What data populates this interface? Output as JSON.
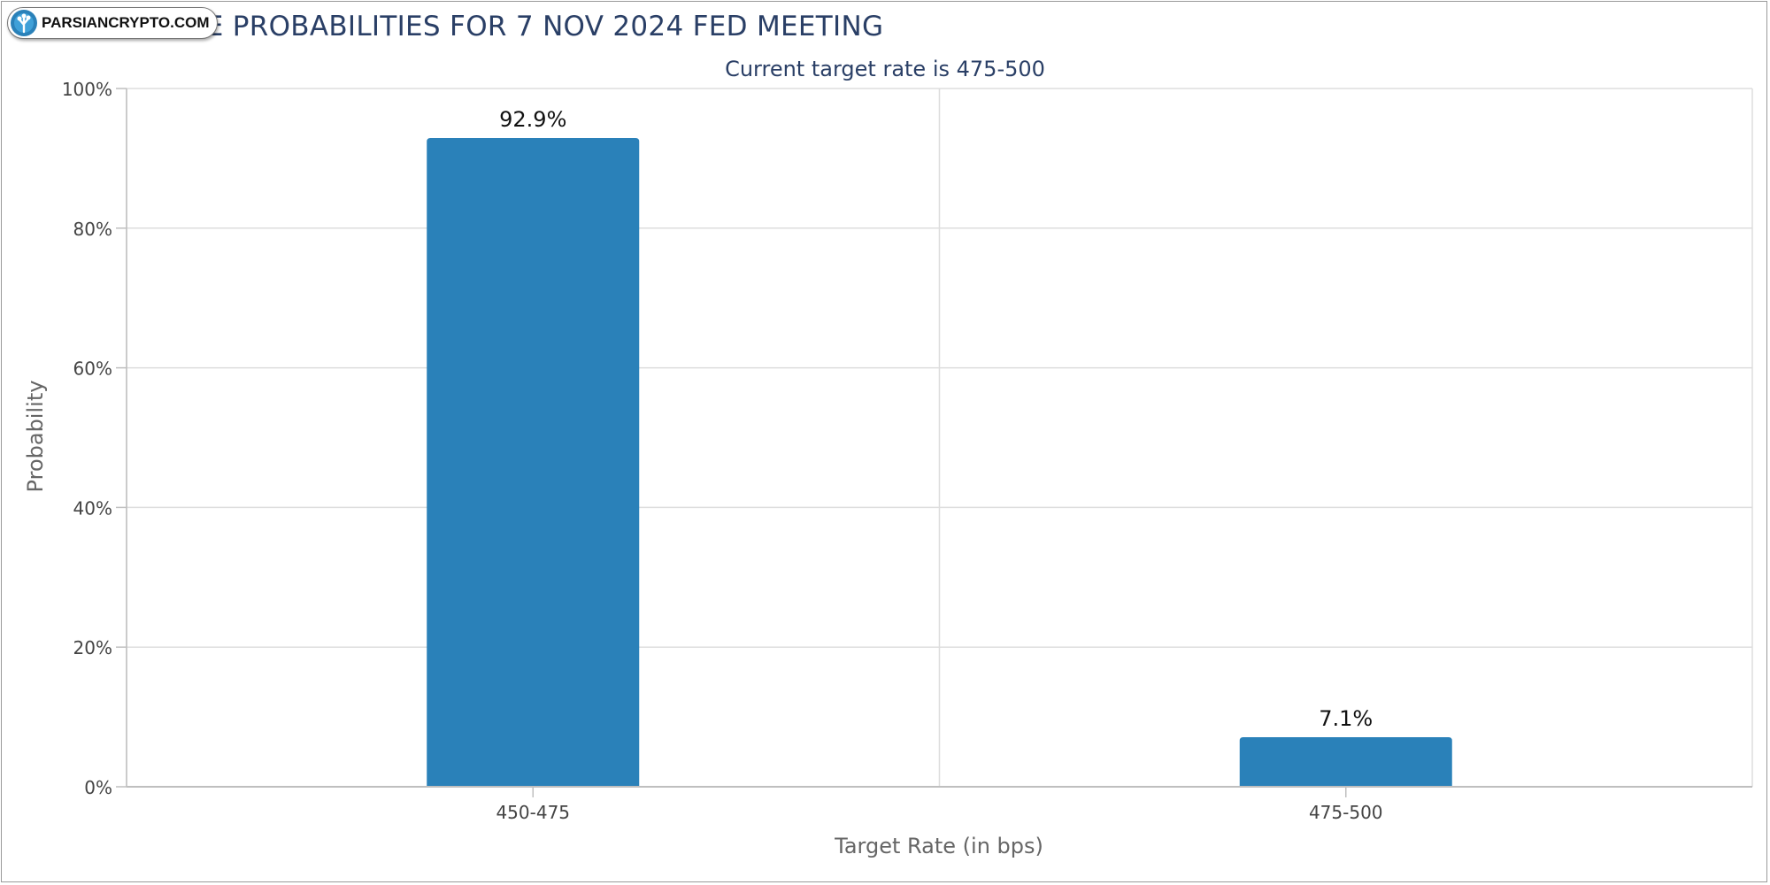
{
  "watermark": {
    "text": "PARSIANCRYPTO.COM",
    "icon": "tree-logo-icon"
  },
  "colors": {
    "bar": "#2a81b9",
    "title": "#2a3f66",
    "grid": "#dddddd",
    "axis": "#bfbfbf",
    "text": "#444444"
  },
  "chart_data": {
    "type": "bar",
    "title": "TARGET RATE PROBABILITIES FOR 7 NOV 2024 FED MEETING",
    "subtitle": "Current target rate is 475-500",
    "xlabel": "Target Rate (in bps)",
    "ylabel": "Probability",
    "categories": [
      "450-475",
      "475-500"
    ],
    "values": [
      92.9,
      7.1
    ],
    "data_labels": [
      "92.9%",
      "7.1%"
    ],
    "ylim": [
      0,
      100
    ],
    "yticks": [
      0,
      20,
      40,
      60,
      80,
      100
    ],
    "ytick_labels": [
      "0%",
      "20%",
      "40%",
      "60%",
      "80%",
      "100%"
    ],
    "grid": true,
    "legend": "none"
  }
}
